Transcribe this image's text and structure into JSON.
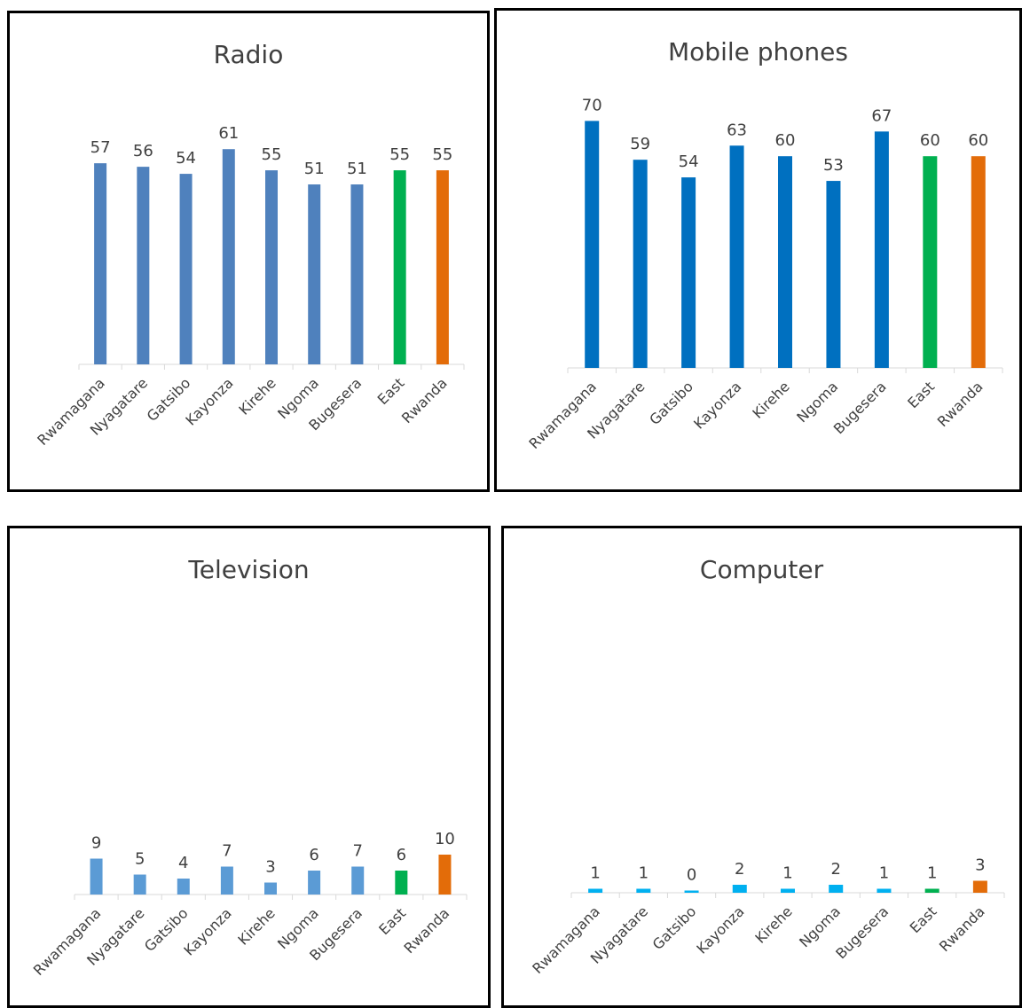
{
  "chart_data": [
    {
      "type": "bar",
      "title": "Radio",
      "categories": [
        "Rwamagana",
        "Nyagatare",
        "Gatsibo",
        "Kayonza",
        "Kirehe",
        "Ngoma",
        "Bugesera",
        "East",
        "Rwanda"
      ],
      "values": [
        57,
        56,
        54,
        61,
        55,
        51,
        51,
        55,
        55
      ],
      "colors": [
        "#4f81bd",
        "#4f81bd",
        "#4f81bd",
        "#4f81bd",
        "#4f81bd",
        "#4f81bd",
        "#4f81bd",
        "#00b050",
        "#e36c09"
      ],
      "ylim": [
        0,
        80
      ]
    },
    {
      "type": "bar",
      "title": "Mobile phones",
      "categories": [
        "Rwamagana",
        "Nyagatare",
        "Gatsibo",
        "Kayonza",
        "Kirehe",
        "Ngoma",
        "Bugesera",
        "East",
        "Rwanda"
      ],
      "values": [
        70,
        59,
        54,
        63,
        60,
        53,
        67,
        60,
        60
      ],
      "colors": [
        "#0070c0",
        "#0070c0",
        "#0070c0",
        "#0070c0",
        "#0070c0",
        "#0070c0",
        "#0070c0",
        "#00b050",
        "#e36c09"
      ],
      "ylim": [
        0,
        80
      ]
    },
    {
      "type": "bar",
      "title": "Television",
      "categories": [
        "Rwamagana",
        "Nyagatare",
        "Gatsibo",
        "Kayonza",
        "Kirehe",
        "Ngoma",
        "Bugesera",
        "East",
        "Rwanda"
      ],
      "values": [
        9,
        5,
        4,
        7,
        3,
        6,
        7,
        6,
        10
      ],
      "colors": [
        "#5b9bd5",
        "#5b9bd5",
        "#5b9bd5",
        "#5b9bd5",
        "#5b9bd5",
        "#5b9bd5",
        "#5b9bd5",
        "#00b050",
        "#e36c09"
      ],
      "ylim": [
        0,
        80
      ]
    },
    {
      "type": "bar",
      "title": "Computer",
      "categories": [
        "Rwamagana",
        "Nyagatare",
        "Gatsibo",
        "Kayonza",
        "Kirehe",
        "Ngoma",
        "Bugesera",
        "East",
        "Rwanda"
      ],
      "values": [
        1,
        1,
        0,
        2,
        1,
        2,
        1,
        1,
        3
      ],
      "colors": [
        "#00b0f0",
        "#00b0f0",
        "#00b0f0",
        "#00b0f0",
        "#00b0f0",
        "#00b0f0",
        "#00b0f0",
        "#00b050",
        "#e36c09"
      ],
      "ylim": [
        0,
        80
      ]
    }
  ]
}
